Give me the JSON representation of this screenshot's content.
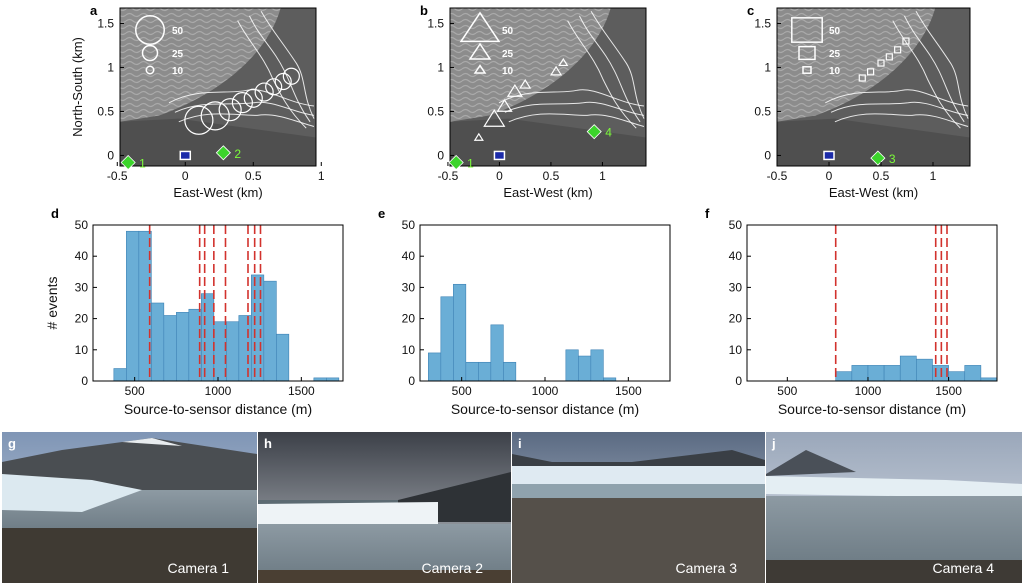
{
  "colors": {
    "bar": "#6aaed6",
    "bar_edge": "#3d82b5",
    "dashed": "#d2322d",
    "station": "#3bd42b",
    "sensor": "#1b2aa8",
    "glacier": "#6b6b6b",
    "contour": "#ffffff"
  },
  "maps": [
    {
      "letter": "a",
      "ylabel": "North-South (km)",
      "xlabel": "East-West (km)",
      "xticks": [
        "-0.5",
        "0",
        "0.5",
        "1"
      ],
      "yticks": [
        "0",
        "0.5",
        "1",
        "1.5"
      ],
      "legend_shape": "circle",
      "legend": [
        "50",
        "25",
        "10"
      ],
      "stations": [
        {
          "id": "1",
          "x": -0.42,
          "y": -0.08
        },
        {
          "id": "2",
          "x": 0.28,
          "y": 0.03
        }
      ],
      "sensor": {
        "x": 0.0,
        "y": 0.0
      }
    },
    {
      "letter": "b",
      "ylabel": "",
      "xlabel": "East-West (km)",
      "xticks": [
        "-0.5",
        "0",
        "0.5",
        "1"
      ],
      "yticks": [
        "0",
        "0.5",
        "1",
        "1.5"
      ],
      "legend_shape": "triangle",
      "legend": [
        "50",
        "25",
        "10"
      ],
      "stations": [
        {
          "id": "1",
          "x": -0.42,
          "y": -0.08
        },
        {
          "id": "4",
          "x": 0.92,
          "y": 0.27
        }
      ],
      "sensor": {
        "x": 0.0,
        "y": 0.0
      }
    },
    {
      "letter": "c",
      "ylabel": "",
      "xlabel": "East-West (km)",
      "xticks": [
        "-0.5",
        "0",
        "0.5",
        "1"
      ],
      "yticks": [
        "0",
        "0.5",
        "1",
        "1.5"
      ],
      "legend_shape": "square",
      "legend": [
        "50",
        "25",
        "10"
      ],
      "stations": [
        {
          "id": "3",
          "x": 0.47,
          "y": -0.03
        }
      ],
      "sensor": {
        "x": 0.0,
        "y": 0.0
      }
    }
  ],
  "chart_data": [
    {
      "letter": "d",
      "type": "bar",
      "ylabel": "# events",
      "xlabel": "Source-to-sensor distance (m)",
      "xticks": [
        "500",
        "1000",
        "1500"
      ],
      "yticks": [
        "0",
        "10",
        "20",
        "30",
        "40",
        "50"
      ],
      "xlim": [
        250,
        1750
      ],
      "ylim": [
        0,
        50
      ],
      "bin_width": 75,
      "bin_starts": [
        300,
        375,
        450,
        525,
        600,
        675,
        750,
        825,
        900,
        975,
        1050,
        1125,
        1200,
        1275,
        1350,
        1425,
        1500,
        1575,
        1650
      ],
      "values": [
        0,
        4,
        48,
        48,
        25,
        21,
        22,
        23,
        28,
        19,
        19,
        21,
        34,
        32,
        15,
        0,
        0,
        1,
        1
      ],
      "dashed_lines": [
        590,
        890,
        920,
        975,
        1045,
        1180,
        1220,
        1255
      ]
    },
    {
      "letter": "e",
      "type": "bar",
      "ylabel": "",
      "xlabel": "Source-to-sensor distance (m)",
      "xticks": [
        "500",
        "1000",
        "1500"
      ],
      "yticks": [
        "0",
        "10",
        "20",
        "30",
        "40",
        "50"
      ],
      "xlim": [
        250,
        1750
      ],
      "ylim": [
        0,
        50
      ],
      "bin_width": 75,
      "bin_starts": [
        300,
        375,
        450,
        525,
        600,
        675,
        750,
        825,
        900,
        975,
        1050,
        1125,
        1200,
        1275,
        1350,
        1425
      ],
      "values": [
        9,
        27,
        31,
        6,
        6,
        18,
        6,
        0,
        0,
        0,
        0,
        10,
        8,
        10,
        1,
        0
      ],
      "dashed_lines": []
    },
    {
      "letter": "f",
      "type": "bar",
      "ylabel": "",
      "xlabel": "Source-to-sensor distance (m)",
      "xticks": [
        "500",
        "1000",
        "1500"
      ],
      "yticks": [
        "0",
        "10",
        "20",
        "30",
        "40",
        "50"
      ],
      "xlim": [
        250,
        1800
      ],
      "ylim": [
        0,
        50
      ],
      "bin_width": 100,
      "bin_starts": [
        800,
        900,
        1000,
        1100,
        1200,
        1300,
        1400,
        1500,
        1600,
        1700
      ],
      "values": [
        3,
        5,
        5,
        5,
        8,
        7,
        5,
        3,
        5,
        1
      ],
      "dashed_lines": [
        800,
        1420,
        1455,
        1490
      ]
    }
  ],
  "photos": [
    {
      "letter": "g",
      "label": "Camera 1"
    },
    {
      "letter": "h",
      "label": "Camera 2"
    },
    {
      "letter": "i",
      "label": "Camera 3"
    },
    {
      "letter": "j",
      "label": "Camera 4"
    }
  ]
}
